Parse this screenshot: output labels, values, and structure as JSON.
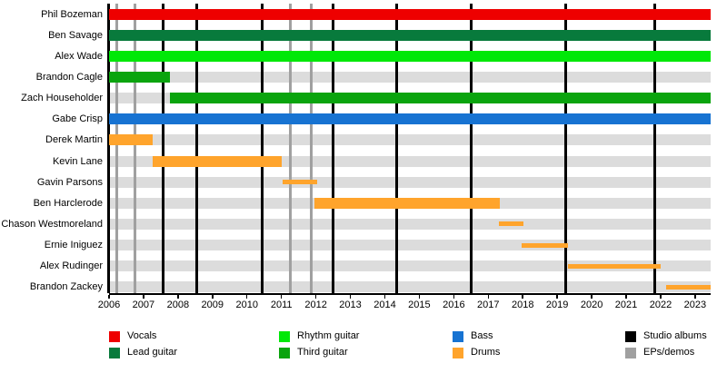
{
  "page": {
    "background": "#ffffff"
  },
  "chart_data": {
    "type": "bar",
    "subtype": "gantt-timeline",
    "title": "",
    "xlabel": "",
    "ylabel": "",
    "x_axis": {
      "min": 2006,
      "max": 2023.45,
      "tick_years": [
        2006,
        2007,
        2008,
        2009,
        2010,
        2011,
        2012,
        2013,
        2014,
        2015,
        2016,
        2017,
        2018,
        2019,
        2020,
        2021,
        2022,
        2023
      ]
    },
    "members": [
      {
        "name": "Phil Bozeman",
        "role": "Vocals",
        "role_key": "vocals",
        "start": 2006.0,
        "end": 2023.45,
        "bar": "full"
      },
      {
        "name": "Ben Savage",
        "role": "Lead guitar",
        "role_key": "lead_guitar",
        "start": 2006.0,
        "end": 2023.45,
        "bar": "full"
      },
      {
        "name": "Alex Wade",
        "role": "Rhythm guitar",
        "role_key": "rhythm_guitar",
        "start": 2006.0,
        "end": 2023.45,
        "bar": "full"
      },
      {
        "name": "Brandon Cagle",
        "role": "Third guitar",
        "role_key": "third_guitar",
        "start": 2006.0,
        "end": 2007.76,
        "bar": "full"
      },
      {
        "name": "Zach Householder",
        "role": "Third guitar",
        "role_key": "third_guitar",
        "start": 2007.76,
        "end": 2023.45,
        "bar": "full"
      },
      {
        "name": "Gabe Crisp",
        "role": "Bass",
        "role_key": "bass",
        "start": 2006.0,
        "end": 2023.45,
        "bar": "full"
      },
      {
        "name": "Derek Martin",
        "role": "Drums",
        "role_key": "drums",
        "start": 2006.0,
        "end": 2007.26,
        "bar": "full"
      },
      {
        "name": "Kevin Lane",
        "role": "Drums",
        "role_key": "drums",
        "start": 2007.26,
        "end": 2011.0,
        "bar": "full"
      },
      {
        "name": "Gavin Parsons",
        "role": "Drums",
        "role_key": "drums",
        "start": 2011.03,
        "end": 2012.03,
        "bar": "thin"
      },
      {
        "name": "Ben Harclerode",
        "role": "Drums",
        "role_key": "drums",
        "start": 2011.95,
        "end": 2017.33,
        "bar": "full"
      },
      {
        "name": "Chason Westmoreland",
        "role": "Drums",
        "role_key": "drums",
        "start": 2017.3,
        "end": 2018.02,
        "bar": "thin"
      },
      {
        "name": "Ernie Iniguez",
        "role": "Drums",
        "role_key": "drums",
        "start": 2017.97,
        "end": 2019.31,
        "bar": "thin"
      },
      {
        "name": "Alex Rudinger",
        "role": "Drums",
        "role_key": "drums",
        "start": 2019.31,
        "end": 2021.99,
        "bar": "thin"
      },
      {
        "name": "Brandon Zackey",
        "role": "Drums",
        "role_key": "drums",
        "start": 2022.15,
        "end": 2023.45,
        "bar": "thin"
      }
    ],
    "events": {
      "studio_albums_years": [
        2007.58,
        2008.55,
        2010.45,
        2012.5,
        2014.33,
        2016.5,
        2019.25,
        2021.83
      ],
      "eps_demos_years": [
        2006.22,
        2006.74,
        2011.25,
        2011.87
      ]
    },
    "colors": {
      "vocals": "#EE0000",
      "lead_guitar": "#087A3C",
      "rhythm_guitar": "#00E808",
      "third_guitar": "#0AA40E",
      "bass": "#1773D2",
      "drums": "#FFA42C",
      "studio_albums": "#000000",
      "eps_demos": "#A0A0A0",
      "row_track": "#DCDCDC",
      "axis": "#000000"
    },
    "legend": {
      "columns": [
        [
          {
            "label": "Vocals",
            "color_key": "vocals"
          },
          {
            "label": "Lead guitar",
            "color_key": "lead_guitar"
          }
        ],
        [
          {
            "label": "Rhythm guitar",
            "color_key": "rhythm_guitar"
          },
          {
            "label": "Third guitar",
            "color_key": "third_guitar"
          }
        ],
        [
          {
            "label": "Bass",
            "color_key": "bass"
          },
          {
            "label": "Drums",
            "color_key": "drums"
          }
        ],
        [
          {
            "label": "Studio albums",
            "color_key": "studio_albums"
          },
          {
            "label": "EPs/demos",
            "color_key": "eps_demos"
          }
        ]
      ]
    }
  }
}
